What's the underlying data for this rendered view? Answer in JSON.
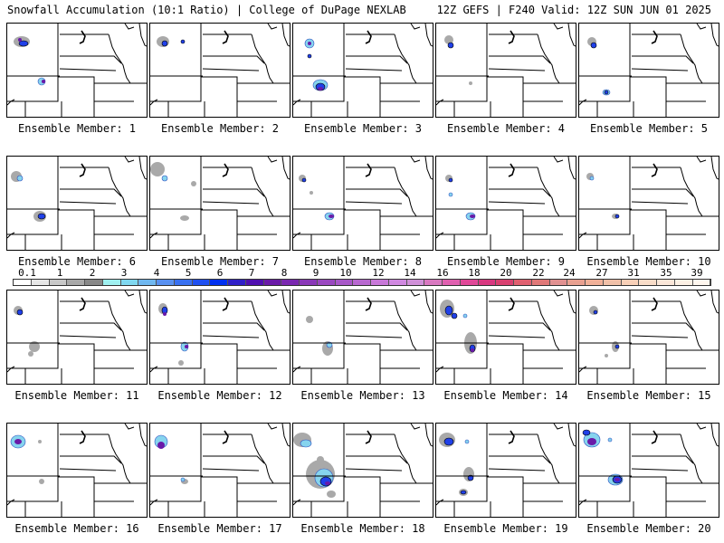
{
  "header": {
    "left_title": "Snowfall Accumulation (10:1 Ratio) | College of DuPage NEXLAB",
    "right_title": "12Z GEFS | F240 Valid: 12Z SUN JUN 01 2025"
  },
  "colorbar": {
    "labels": [
      "0.1",
      "1",
      "2",
      "3",
      "4",
      "5",
      "6",
      "7",
      "8",
      "9",
      "10",
      "12",
      "14",
      "16",
      "18",
      "20",
      "22",
      "24",
      "27",
      "31",
      "35",
      "39"
    ],
    "colors": [
      "#ffffff",
      "#e6e6e6",
      "#c8c8c8",
      "#a8a8a8",
      "#888888",
      "#9ff0f0",
      "#80d8f0",
      "#70b8f0",
      "#5890f0",
      "#3870f0",
      "#2050f0",
      "#0030f0",
      "#3020c8",
      "#5010b0",
      "#6a1aa8",
      "#7a28b0",
      "#8a38b8",
      "#9a48c0",
      "#a858c8",
      "#b868d0",
      "#c878d8",
      "#d088e0",
      "#d090d8",
      "#d878c0",
      "#e060b0",
      "#e04898",
      "#d83880",
      "#d84070",
      "#e06070",
      "#e07878",
      "#e09090",
      "#e8a090",
      "#f0b098",
      "#f0c0a8",
      "#f8d0b8",
      "#f8dcc8",
      "#fae6d8",
      "#fcf0e4",
      "#fef6ee"
    ]
  },
  "members": [
    {
      "label": "Ensemble Member: 1"
    },
    {
      "label": "Ensemble Member: 2"
    },
    {
      "label": "Ensemble Member: 3"
    },
    {
      "label": "Ensemble Member: 4"
    },
    {
      "label": "Ensemble Member: 5"
    },
    {
      "label": "Ensemble Member: 6"
    },
    {
      "label": "Ensemble Member: 7"
    },
    {
      "label": "Ensemble Member: 8"
    },
    {
      "label": "Ensemble Member: 9"
    },
    {
      "label": "Ensemble Member: 10"
    },
    {
      "label": "Ensemble Member: 11"
    },
    {
      "label": "Ensemble Member: 12"
    },
    {
      "label": "Ensemble Member: 13"
    },
    {
      "label": "Ensemble Member: 14"
    },
    {
      "label": "Ensemble Member: 15"
    },
    {
      "label": "Ensemble Member: 16"
    },
    {
      "label": "Ensemble Member: 17"
    },
    {
      "label": "Ensemble Member: 18"
    },
    {
      "label": "Ensemble Member: 19"
    },
    {
      "label": "Ensemble Member: 20"
    }
  ]
}
